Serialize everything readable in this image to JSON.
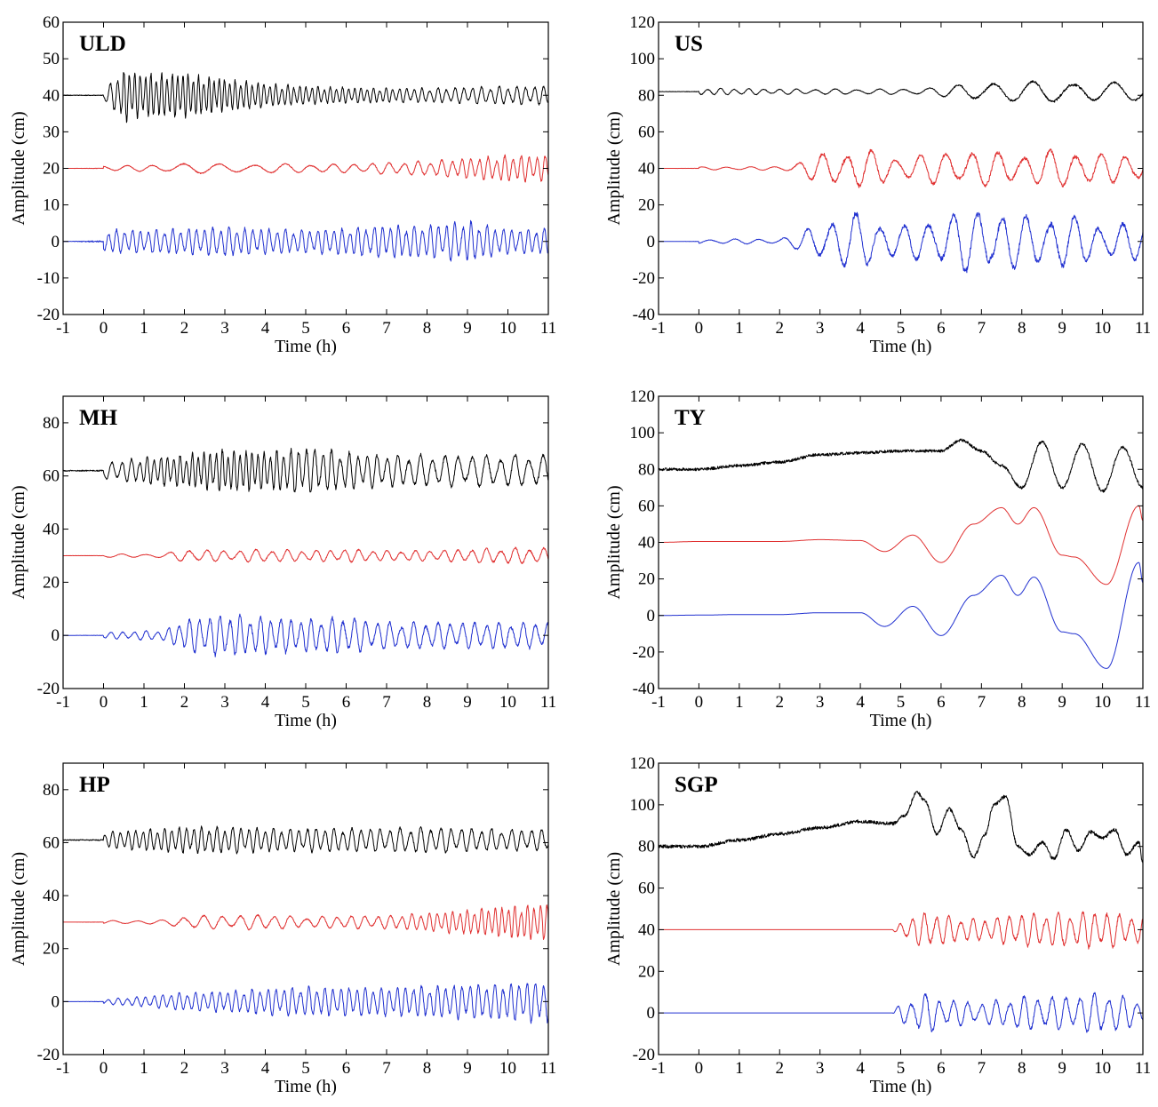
{
  "figure": {
    "panels": [
      {
        "id": "uld",
        "title": "ULD"
      },
      {
        "id": "us",
        "title": "US"
      },
      {
        "id": "mh",
        "title": "MH"
      },
      {
        "id": "ty",
        "title": "TY"
      },
      {
        "id": "hp",
        "title": "HP"
      },
      {
        "id": "sgp",
        "title": "SGP"
      }
    ]
  },
  "chart_data": [
    {
      "type": "line",
      "title": "ULD",
      "xlabel": "Time (h)",
      "ylabel": "Amplitude (cm)",
      "xlim": [
        -1,
        11
      ],
      "ylim": [
        -20,
        60
      ],
      "xticks": [
        -1,
        0,
        1,
        2,
        3,
        4,
        5,
        6,
        7,
        8,
        9,
        10,
        11
      ],
      "yticks": [
        -20,
        -10,
        0,
        10,
        20,
        30,
        40,
        50,
        60
      ],
      "grid": false,
      "series": [
        {
          "color": "#000000",
          "baseline": 40,
          "onset": 0,
          "seed": 11,
          "x": [
            -1,
            0,
            0.5,
            1,
            2,
            3,
            4,
            5,
            6,
            7,
            8,
            9,
            10,
            11
          ],
          "y": [
            1.0,
            1.2,
            7,
            6,
            6,
            4.5,
            3.2,
            2.5,
            2.2,
            2.0,
            2.0,
            2.2,
            2.5,
            2.5
          ],
          "period": [
            0.25,
            0.25,
            0.13,
            0.13,
            0.13,
            0.13,
            0.15,
            0.15,
            0.15,
            0.16,
            0.2,
            0.22,
            0.22,
            0.22
          ]
        },
        {
          "color": "#e03030",
          "baseline": 20,
          "onset": 0,
          "seed": 22,
          "x": [
            -1,
            0,
            1,
            2,
            3,
            4,
            5,
            6,
            7,
            8,
            9,
            10,
            11
          ],
          "y": [
            0,
            0.8,
            0.8,
            1.5,
            1.2,
            1.3,
            1.2,
            1.2,
            1.6,
            2.0,
            2.8,
            3.5,
            3.5
          ],
          "period": [
            0.6,
            0.6,
            0.6,
            0.9,
            0.9,
            0.8,
            0.6,
            0.5,
            0.4,
            0.3,
            0.22,
            0.2,
            0.2
          ]
        },
        {
          "color": "#2030d0",
          "baseline": 0,
          "onset": 0,
          "seed": 33,
          "x": [
            -1,
            0,
            1,
            2,
            3,
            4,
            5,
            6,
            7,
            8,
            9,
            10,
            11
          ],
          "y": [
            0,
            3.2,
            3.2,
            3.5,
            4.0,
            3.5,
            3.2,
            3.6,
            4.5,
            4.5,
            5.5,
            3.5,
            3.5
          ],
          "period": [
            0.2,
            0.2,
            0.2,
            0.2,
            0.2,
            0.2,
            0.2,
            0.2,
            0.2,
            0.2,
            0.2,
            0.2,
            0.2
          ]
        }
      ]
    },
    {
      "type": "line",
      "title": "US",
      "xlabel": "Time (h)",
      "ylabel": "Amplitude (cm)",
      "xlim": [
        -1,
        11
      ],
      "ylim": [
        -40,
        120
      ],
      "xticks": [
        -1,
        0,
        1,
        2,
        3,
        4,
        5,
        6,
        7,
        8,
        9,
        10,
        11
      ],
      "yticks": [
        -40,
        -20,
        0,
        20,
        40,
        60,
        80,
        100,
        120
      ],
      "grid": false,
      "series": [
        {
          "color": "#000000",
          "baseline": 82,
          "onset": 0,
          "seed": 44,
          "x": [
            -1,
            0,
            2,
            3,
            5,
            6,
            7,
            8,
            9,
            10,
            11
          ],
          "y": [
            1.0,
            2.0,
            1.5,
            1.5,
            1.5,
            2.5,
            6,
            5,
            7,
            5,
            5
          ],
          "period": [
            0.25,
            0.3,
            0.4,
            0.5,
            0.6,
            0.7,
            0.9,
            1.0,
            1.0,
            1.0,
            1.0
          ]
        },
        {
          "color": "#e03030",
          "baseline": 40,
          "onset": 0,
          "seed": 55,
          "x": [
            -1,
            0,
            2,
            2.4,
            3,
            4,
            5,
            6,
            7,
            8,
            9,
            10,
            11
          ],
          "y": [
            0,
            0.8,
            1.0,
            3,
            8,
            11,
            6,
            9,
            10,
            8,
            11,
            8,
            8
          ],
          "period": [
            0.6,
            0.6,
            0.6,
            0.6,
            0.6,
            0.6,
            0.6,
            0.65,
            0.65,
            0.65,
            0.65,
            0.6,
            0.6
          ]
        },
        {
          "color": "#2030d0",
          "baseline": 0,
          "onset": 0,
          "seed": 66,
          "x": [
            -1,
            0,
            2,
            2.4,
            3,
            4,
            5,
            6,
            7,
            8,
            9,
            10,
            11
          ],
          "y": [
            0,
            1.2,
            1.5,
            4,
            11,
            16,
            8,
            14,
            18,
            14,
            15,
            10,
            10
          ],
          "period": [
            0.6,
            0.6,
            0.6,
            0.6,
            0.6,
            0.6,
            0.6,
            0.6,
            0.6,
            0.6,
            0.6,
            0.6,
            0.6
          ]
        }
      ]
    },
    {
      "type": "line",
      "title": "MH",
      "xlabel": "Time (h)",
      "ylabel": "Amplitude (cm)",
      "xlim": [
        -1,
        11
      ],
      "ylim": [
        -20,
        90
      ],
      "xticks": [
        -1,
        0,
        1,
        2,
        3,
        4,
        5,
        6,
        7,
        8,
        9,
        10,
        11
      ],
      "yticks": [
        -20,
        0,
        20,
        40,
        60,
        80
      ],
      "grid": false,
      "series": [
        {
          "color": "#000000",
          "baseline": 62,
          "onset": 0,
          "seed": 77,
          "x": [
            -1,
            0,
            1,
            2,
            3,
            4,
            5,
            6,
            7,
            8,
            9,
            10,
            11
          ],
          "y": [
            3,
            3,
            5,
            6,
            8,
            7,
            9,
            7,
            6,
            6,
            6,
            6,
            6
          ],
          "period": [
            0.35,
            0.3,
            0.18,
            0.15,
            0.15,
            0.15,
            0.2,
            0.22,
            0.25,
            0.3,
            0.35,
            0.35,
            0.35
          ]
        },
        {
          "color": "#e03030",
          "baseline": 30,
          "onset": 0,
          "seed": 88,
          "x": [
            -1,
            0,
            1.5,
            2,
            3,
            4,
            5,
            6,
            7,
            8,
            9,
            10,
            11
          ],
          "y": [
            0,
            0.6,
            0.8,
            2.5,
            2.0,
            2.5,
            2.0,
            2.5,
            2.0,
            2.0,
            2.5,
            3.0,
            3.0
          ],
          "period": [
            0.6,
            0.6,
            0.6,
            0.45,
            0.4,
            0.4,
            0.35,
            0.35,
            0.35,
            0.35,
            0.35,
            0.35,
            0.35
          ]
        },
        {
          "color": "#2030d0",
          "baseline": 0,
          "onset": 0,
          "seed": 99,
          "x": [
            -1,
            0,
            1.5,
            2,
            3,
            4,
            5,
            6,
            7,
            8,
            9,
            10,
            11
          ],
          "y": [
            0,
            1.2,
            2.0,
            6,
            8,
            7,
            6,
            7,
            5,
            5,
            5,
            5,
            5
          ],
          "period": [
            0.3,
            0.3,
            0.28,
            0.25,
            0.25,
            0.25,
            0.25,
            0.28,
            0.3,
            0.3,
            0.3,
            0.3,
            0.3
          ]
        }
      ]
    },
    {
      "type": "line",
      "title": "TY",
      "xlabel": "Time (h)",
      "ylabel": "Amplitude (cm)",
      "xlim": [
        -1,
        11
      ],
      "ylim": [
        -40,
        120
      ],
      "xticks": [
        -1,
        0,
        1,
        2,
        3,
        4,
        5,
        6,
        7,
        8,
        9,
        10,
        11
      ],
      "yticks": [
        -40,
        -20,
        0,
        20,
        40,
        60,
        80,
        100,
        120
      ],
      "grid": false,
      "series": [
        {
          "color": "#000000",
          "x": [
            -1,
            0,
            1,
            2,
            3,
            4,
            5,
            6,
            6.5,
            7,
            7.5,
            8,
            8.5,
            9,
            9.5,
            10,
            10.5,
            11
          ],
          "y": [
            80,
            80,
            82,
            84,
            88,
            89,
            90,
            90,
            96,
            90,
            82,
            70,
            95,
            70,
            94,
            68,
            92,
            70
          ]
        },
        {
          "color": "#e03030",
          "x": [
            -1,
            0,
            1,
            2,
            3,
            4,
            4.6,
            5.3,
            6.0,
            6.8,
            7.5,
            7.9,
            8.3,
            9.0,
            9.3,
            10.1,
            10.9,
            11
          ],
          "y": [
            40,
            40.5,
            40.5,
            40.5,
            41.5,
            41,
            35,
            44,
            29,
            50,
            59,
            50,
            59,
            33,
            32,
            17,
            60,
            52
          ]
        },
        {
          "color": "#2030d0",
          "x": [
            -1,
            0,
            1,
            2,
            3,
            4,
            4.6,
            5.3,
            6.0,
            6.8,
            7.5,
            7.9,
            8.3,
            9.0,
            9.3,
            10.1,
            10.9,
            11
          ],
          "y": [
            0,
            0.2,
            0.5,
            0.5,
            1.5,
            1.5,
            -6,
            5,
            -11,
            11,
            22,
            11,
            21,
            -9,
            -10,
            -29,
            29,
            18
          ]
        }
      ]
    },
    {
      "type": "line",
      "title": "HP",
      "xlabel": "Time (h)",
      "ylabel": "Amplitude (cm)",
      "xlim": [
        -1,
        11
      ],
      "ylim": [
        -20,
        90
      ],
      "xticks": [
        -1,
        0,
        1,
        2,
        3,
        4,
        5,
        6,
        7,
        8,
        9,
        10,
        11
      ],
      "yticks": [
        -20,
        0,
        20,
        40,
        60,
        80
      ],
      "grid": false,
      "series": [
        {
          "color": "#000000",
          "baseline": 61,
          "onset": 0,
          "seed": 121,
          "x": [
            -1,
            0,
            1,
            2,
            3,
            4,
            5,
            6,
            7,
            8,
            9,
            10,
            11
          ],
          "y": [
            2.5,
            3,
            4,
            5,
            5,
            4.5,
            4.5,
            4.5,
            4.5,
            5,
            4.5,
            4,
            4
          ],
          "period": [
            0.2,
            0.2,
            0.18,
            0.18,
            0.2,
            0.2,
            0.22,
            0.22,
            0.25,
            0.25,
            0.25,
            0.25,
            0.25
          ]
        },
        {
          "color": "#e03030",
          "baseline": 30,
          "onset": 0,
          "seed": 131,
          "x": [
            -1,
            0,
            1.5,
            2,
            3,
            4,
            5,
            6,
            7,
            8,
            9,
            10,
            11
          ],
          "y": [
            0,
            0.6,
            0.8,
            2.5,
            2.5,
            3,
            2,
            2.5,
            2.5,
            3.5,
            4.5,
            6,
            7
          ],
          "period": [
            0.6,
            0.6,
            0.6,
            0.5,
            0.45,
            0.4,
            0.4,
            0.35,
            0.3,
            0.2,
            0.18,
            0.16,
            0.16
          ]
        },
        {
          "color": "#2030d0",
          "baseline": 0,
          "onset": 0,
          "seed": 141,
          "x": [
            -1,
            0,
            1,
            2,
            3,
            4,
            5,
            6,
            7,
            8,
            9,
            10,
            11
          ],
          "y": [
            0,
            1.0,
            2.0,
            3.5,
            4.0,
            5.0,
            5.5,
            5.5,
            5.5,
            6,
            6.5,
            7,
            8
          ],
          "period": [
            0.25,
            0.25,
            0.22,
            0.2,
            0.2,
            0.2,
            0.2,
            0.2,
            0.2,
            0.2,
            0.2,
            0.2,
            0.2
          ]
        }
      ]
    },
    {
      "type": "line",
      "title": "SGP",
      "xlabel": "Time (h)",
      "ylabel": "Amplitude (cm)",
      "xlim": [
        -1,
        11
      ],
      "ylim": [
        -20,
        120
      ],
      "xticks": [
        -1,
        0,
        1,
        2,
        3,
        4,
        5,
        6,
        7,
        8,
        9,
        10,
        11
      ],
      "yticks": [
        -20,
        0,
        20,
        40,
        60,
        80,
        100,
        120
      ],
      "grid": false,
      "series": [
        {
          "color": "#000000",
          "x": [
            -1,
            0,
            1,
            2,
            3,
            4,
            4.8,
            5.1,
            5.4,
            5.6,
            5.9,
            6.2,
            6.5,
            6.8,
            7.1,
            7.3,
            7.6,
            7.9,
            8.2,
            8.5,
            8.8,
            9.1,
            9.4,
            9.7,
            10.0,
            10.3,
            10.6,
            10.9,
            11
          ],
          "y": [
            80,
            80,
            83,
            86,
            89,
            92,
            91,
            95,
            106,
            102,
            86,
            98,
            88,
            75,
            86,
            100,
            104,
            80,
            76,
            82,
            74,
            88,
            78,
            87,
            84,
            88,
            76,
            82,
            72
          ]
        },
        {
          "color": "#e03030",
          "baseline": 40,
          "onset": 4.8,
          "seed": 151,
          "x": [
            -1,
            4.8,
            5,
            5.7,
            6,
            7,
            8,
            9,
            10,
            11
          ],
          "y": [
            0,
            0,
            4,
            9,
            7,
            5,
            8,
            8,
            9,
            6
          ],
          "period": [
            0.3,
            0.3,
            0.3,
            0.3,
            0.3,
            0.3,
            0.3,
            0.3,
            0.3,
            0.3
          ]
        },
        {
          "color": "#2030d0",
          "baseline": 0,
          "onset": 4.8,
          "seed": 161,
          "x": [
            -1,
            4.8,
            5,
            5.7,
            6,
            7,
            8,
            9,
            10,
            11
          ],
          "y": [
            0,
            0,
            5,
            10,
            7,
            5,
            8,
            8,
            10,
            6
          ],
          "period": [
            0.35,
            0.35,
            0.35,
            0.35,
            0.35,
            0.35,
            0.35,
            0.35,
            0.35,
            0.35
          ]
        }
      ]
    }
  ]
}
